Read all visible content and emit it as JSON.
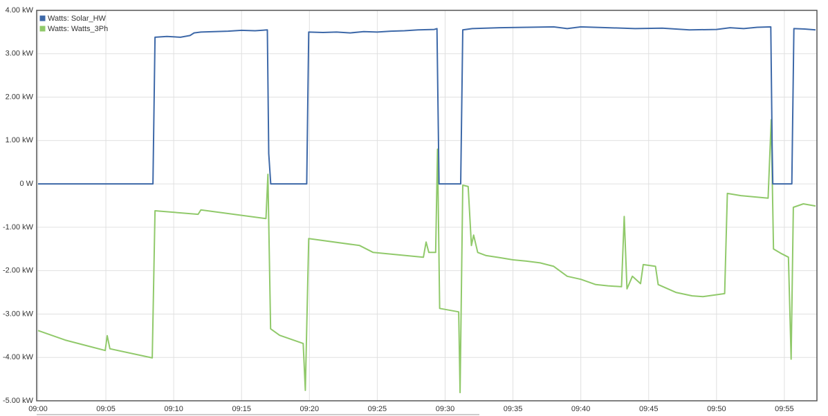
{
  "chart_data": {
    "type": "line",
    "xlim": [
      -0.1,
      57.4
    ],
    "xticks": [
      {
        "value": 0,
        "label": "09:00"
      },
      {
        "value": 5,
        "label": "09:05"
      },
      {
        "value": 10,
        "label": "09:10"
      },
      {
        "value": 15,
        "label": "09:15"
      },
      {
        "value": 20,
        "label": "09:20"
      },
      {
        "value": 25,
        "label": "09:25"
      },
      {
        "value": 30,
        "label": "09:30"
      },
      {
        "value": 35,
        "label": "09:35"
      },
      {
        "value": 40,
        "label": "09:40"
      },
      {
        "value": 45,
        "label": "09:45"
      },
      {
        "value": 50,
        "label": "09:50"
      },
      {
        "value": 55,
        "label": "09:55"
      }
    ],
    "ylim": [
      -5,
      4
    ],
    "yticks": [
      {
        "value": 4,
        "label": "4.00 kW"
      },
      {
        "value": 3,
        "label": "3.00 kW"
      },
      {
        "value": 2,
        "label": "2.00 kW"
      },
      {
        "value": 1,
        "label": "1.00 kW"
      },
      {
        "value": 0,
        "label": "0 W"
      },
      {
        "value": -1,
        "label": "-1.00 kW"
      },
      {
        "value": -2,
        "label": "-2.00 kW"
      },
      {
        "value": -3,
        "label": "-3.00 kW"
      },
      {
        "value": -4,
        "label": "-4.00 kW"
      },
      {
        "value": -5,
        "label": "-5.00 kW"
      }
    ],
    "grid": true,
    "legend": "top-left",
    "series": [
      {
        "name": "Watts: Solar_HW",
        "color": "#3d68a8",
        "x": [
          0,
          8.47,
          8.62,
          9.5,
          10.5,
          11.2,
          11.5,
          12.0,
          13,
          14,
          15,
          16,
          16.9,
          17.0,
          17.15,
          19.8,
          19.95,
          21,
          22,
          23,
          24,
          25,
          26,
          27,
          28,
          29.2,
          29.4,
          29.55,
          31.15,
          31.3,
          32,
          34,
          36,
          38,
          39,
          40,
          42,
          44,
          46,
          48,
          50,
          51,
          52,
          53,
          54.0,
          54.1,
          54.15,
          55.55,
          55.7,
          56.5,
          57.3
        ],
        "values": [
          0,
          0,
          3.38,
          3.4,
          3.38,
          3.42,
          3.48,
          3.5,
          3.51,
          3.52,
          3.54,
          3.53,
          3.55,
          0.7,
          0,
          0,
          3.5,
          3.49,
          3.5,
          3.48,
          3.51,
          3.5,
          3.52,
          3.53,
          3.55,
          3.56,
          3.58,
          0,
          0,
          3.55,
          3.58,
          3.6,
          3.61,
          3.62,
          3.58,
          3.62,
          3.6,
          3.58,
          3.59,
          3.55,
          3.56,
          3.6,
          3.58,
          3.61,
          3.62,
          0.8,
          0,
          0,
          3.58,
          3.57,
          3.55
        ]
      },
      {
        "name": "Watts: Watts_3Ph",
        "color": "#90c96a",
        "x": [
          0,
          2,
          4.95,
          5.1,
          5.3,
          8.42,
          8.62,
          11.8,
          12.0,
          16.8,
          16.94,
          17.14,
          17.8,
          19.54,
          19.7,
          19.95,
          23.7,
          24.7,
          28.4,
          28.6,
          28.8,
          29.3,
          29.44,
          29.6,
          31.0,
          31.1,
          31.3,
          31.7,
          31.94,
          32.1,
          32.4,
          33,
          34,
          35,
          36,
          37,
          38,
          39,
          40,
          41.1,
          42,
          43.0,
          43.2,
          43.4,
          43.8,
          44.4,
          44.6,
          45.5,
          45.7,
          47,
          48.2,
          49,
          50.6,
          50.8,
          51.8,
          53.8,
          54.03,
          54.2,
          54.8,
          55.3,
          55.5,
          55.66,
          56.4,
          57.3
        ],
        "values": [
          -3.38,
          -3.6,
          -3.84,
          -3.5,
          -3.8,
          -4.01,
          -0.62,
          -0.7,
          -0.6,
          -0.8,
          0.22,
          -3.34,
          -3.49,
          -3.68,
          -4.76,
          -1.26,
          -1.42,
          -1.58,
          -1.69,
          -1.34,
          -1.58,
          -1.58,
          0.8,
          -2.87,
          -2.95,
          -4.81,
          -0.03,
          -0.06,
          -1.42,
          -1.18,
          -1.58,
          -1.65,
          -1.7,
          -1.75,
          -1.78,
          -1.82,
          -1.9,
          -2.13,
          -2.2,
          -2.32,
          -2.35,
          -2.37,
          -0.75,
          -2.42,
          -2.13,
          -2.3,
          -1.86,
          -1.9,
          -2.32,
          -2.5,
          -2.58,
          -2.6,
          -2.53,
          -0.22,
          -0.27,
          -0.33,
          1.48,
          -1.5,
          -1.61,
          -1.69,
          -4.04,
          -0.54,
          -0.46,
          -0.51
        ]
      }
    ]
  }
}
